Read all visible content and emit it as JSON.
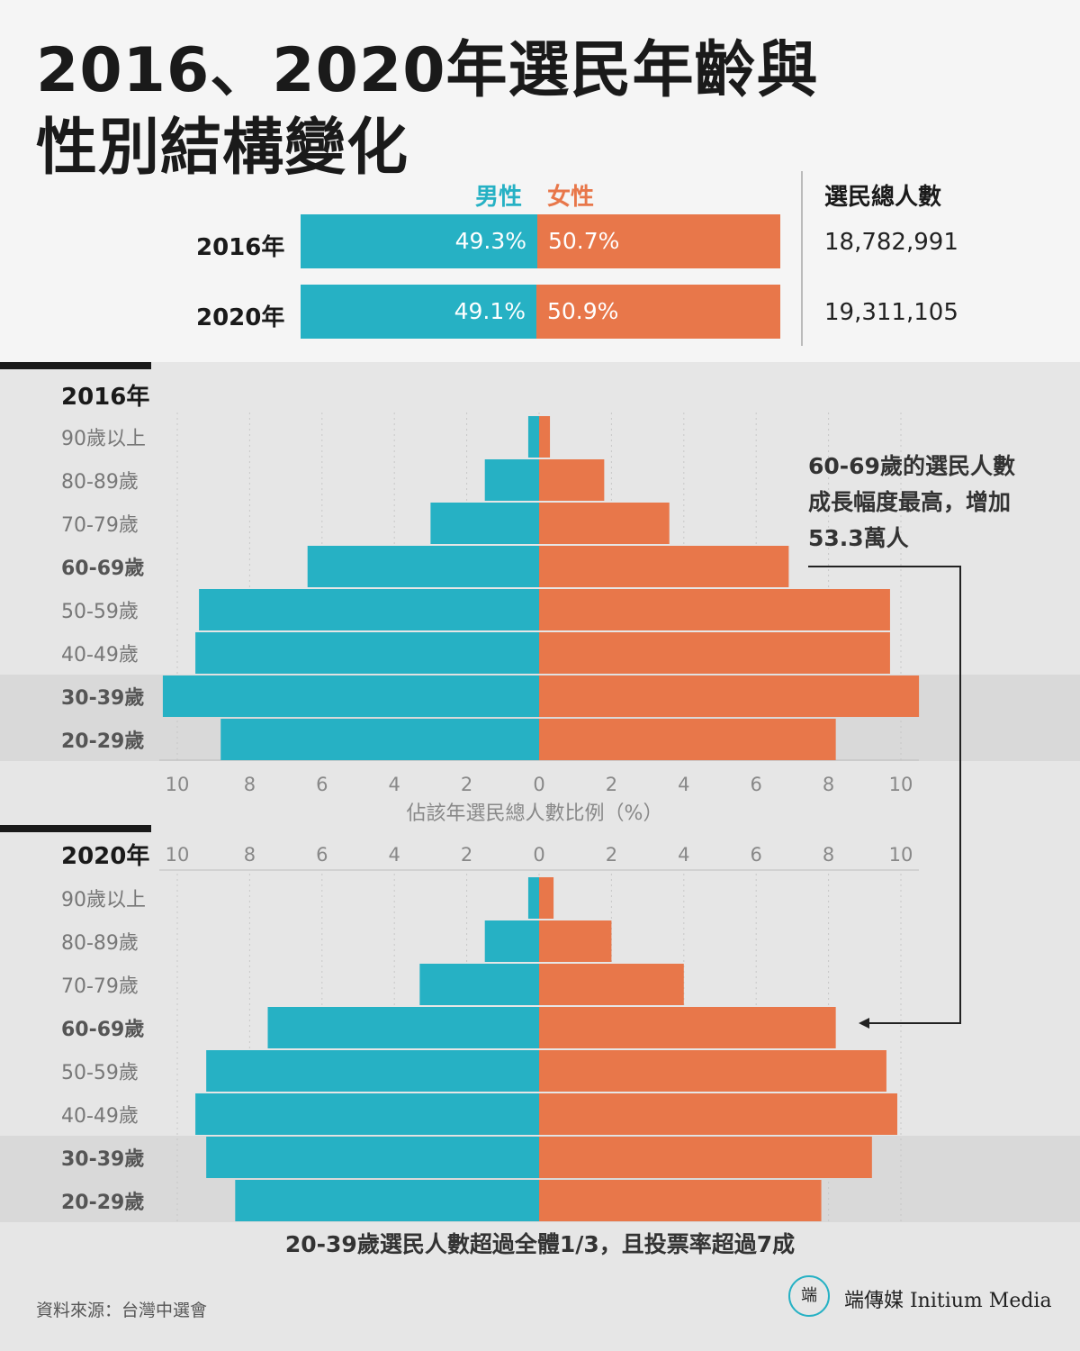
{
  "title_line1": "2016、2020年選民年齡與",
  "title_line2": "性別結構變化",
  "summary": {
    "legend_male": "男性",
    "legend_female": "女性",
    "total_header": "選民總人數",
    "rows": [
      {
        "year": "2016年",
        "male_pct": "49.3%",
        "female_pct": "50.7%",
        "total": "18,782,991"
      },
      {
        "year": "2020年",
        "male_pct": "49.1%",
        "female_pct": "50.9%",
        "total": "19,311,105"
      }
    ]
  },
  "colors": {
    "male": "#26b1c4",
    "female": "#e8774a",
    "highlight_band": "#d9d9d9",
    "panel_bg": "#e6e6e6"
  },
  "annotation": "60-69歲的選民人數成長幅度最高，增加53.3萬人",
  "annotation_lines": [
    "60-69歲的選民人數",
    "成長幅度最高，增加",
    "53.3萬人"
  ],
  "bottom_note": "20-39歲選民人數超過全體1/3，且投票率超過7成",
  "source": "資料來源：台灣中選會",
  "brand": "端傳媒 Initium Media",
  "logo_glyph": "端",
  "chart_data": [
    {
      "type": "bar",
      "orientation": "horizontal-pyramid",
      "title": "2016年",
      "xlabel": "佔該年選民總人數比例（%）",
      "xlim": [
        -10,
        10
      ],
      "x_ticks": [
        "10",
        "8",
        "6",
        "4",
        "2",
        "0",
        "2",
        "4",
        "6",
        "8",
        "10"
      ],
      "categories": [
        "90歲以上",
        "80-89歲",
        "70-79歲",
        "60-69歲",
        "50-59歲",
        "40-49歲",
        "30-39歲",
        "20-29歲"
      ],
      "bold_categories": [
        "60-69歲",
        "30-39歲",
        "20-29歲"
      ],
      "highlighted_categories": [
        "30-39歲",
        "20-29歲"
      ],
      "series": [
        {
          "name": "男性",
          "values": [
            0.3,
            1.5,
            3.0,
            6.4,
            9.4,
            9.5,
            10.4,
            8.8
          ]
        },
        {
          "name": "女性",
          "values": [
            0.3,
            1.8,
            3.6,
            6.9,
            9.7,
            9.7,
            10.5,
            8.2
          ]
        }
      ]
    },
    {
      "type": "bar",
      "orientation": "horizontal-pyramid",
      "title": "2020年",
      "xlabel": "",
      "xlim": [
        -10,
        10
      ],
      "x_ticks": [
        "10",
        "8",
        "6",
        "4",
        "2",
        "0",
        "2",
        "4",
        "6",
        "8",
        "10"
      ],
      "categories": [
        "90歲以上",
        "80-89歲",
        "70-79歲",
        "60-69歲",
        "50-59歲",
        "40-49歲",
        "30-39歲",
        "20-29歲"
      ],
      "bold_categories": [
        "60-69歲",
        "30-39歲",
        "20-29歲"
      ],
      "highlighted_categories": [
        "30-39歲",
        "20-29歲"
      ],
      "series": [
        {
          "name": "男性",
          "values": [
            0.3,
            1.5,
            3.3,
            7.5,
            9.2,
            9.5,
            9.2,
            8.4
          ]
        },
        {
          "name": "女性",
          "values": [
            0.4,
            2.0,
            4.0,
            8.2,
            9.6,
            9.9,
            9.2,
            7.8
          ]
        }
      ]
    }
  ]
}
